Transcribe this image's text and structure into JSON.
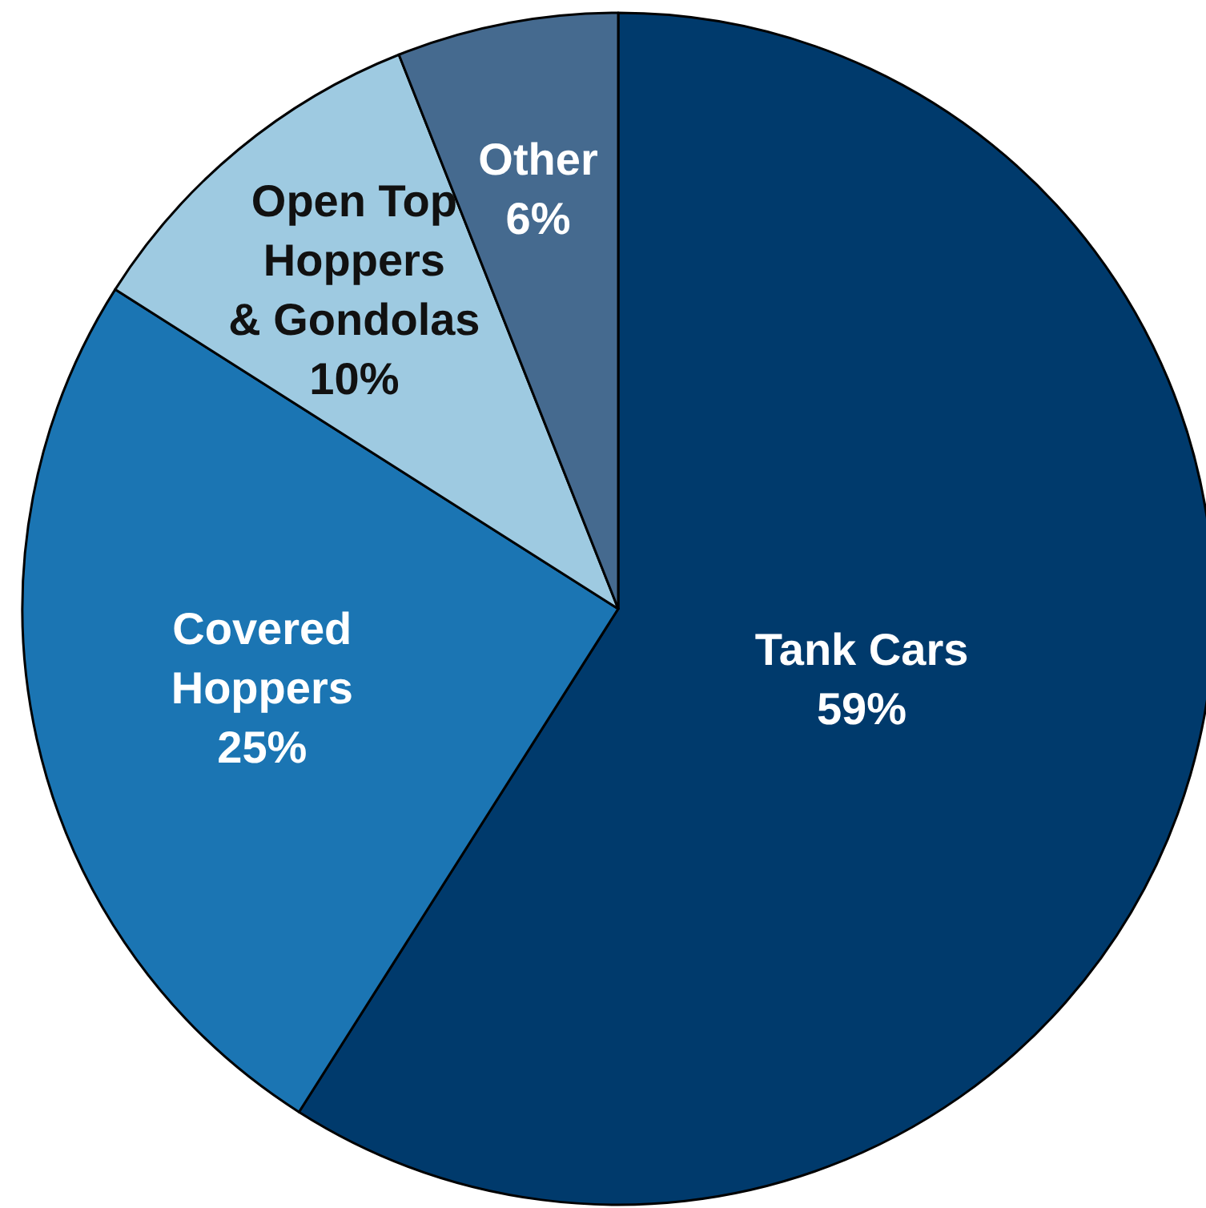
{
  "chart_data": {
    "type": "pie",
    "categories": [
      "Tank Cars",
      "Covered\nHoppers",
      "Open Top\nHoppers\n& Gondolas",
      "Other"
    ],
    "values": [
      59,
      25,
      10,
      6
    ],
    "value_labels": [
      "59%",
      "25%",
      "10%",
      "6%"
    ],
    "colors": [
      "#003a6c",
      "#1b75b3",
      "#9ecae1",
      "#456a8f"
    ],
    "legend": false
  }
}
